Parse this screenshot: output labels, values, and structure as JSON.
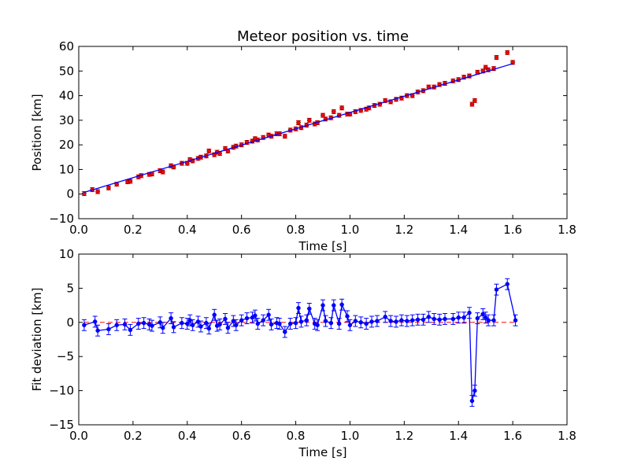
{
  "chart_data": [
    {
      "type": "scatter",
      "title": "Meteor position vs. time",
      "xlabel": "Time [s]",
      "ylabel": "Position [km]",
      "xlim": [
        0.0,
        1.8
      ],
      "ylim": [
        -10,
        60
      ],
      "xticks": [
        "0.0",
        "0.2",
        "0.4",
        "0.6",
        "0.8",
        "1.0",
        "1.2",
        "1.4",
        "1.6",
        "1.8"
      ],
      "yticks": [
        "−10",
        "0",
        "10",
        "20",
        "30",
        "40",
        "50",
        "60"
      ],
      "grid": false,
      "series": [
        {
          "kind": "points_with_errorbars",
          "color": "#ff0000",
          "x": [
            0.02,
            0.05,
            0.07,
            0.11,
            0.14,
            0.18,
            0.19,
            0.22,
            0.23,
            0.26,
            0.27,
            0.3,
            0.31,
            0.34,
            0.35,
            0.38,
            0.4,
            0.41,
            0.42,
            0.44,
            0.45,
            0.47,
            0.48,
            0.5,
            0.51,
            0.52,
            0.54,
            0.55,
            0.57,
            0.58,
            0.6,
            0.62,
            0.64,
            0.65,
            0.66,
            0.68,
            0.7,
            0.71,
            0.73,
            0.74,
            0.76,
            0.78,
            0.8,
            0.81,
            0.82,
            0.84,
            0.85,
            0.87,
            0.88,
            0.9,
            0.91,
            0.93,
            0.94,
            0.96,
            0.97,
            0.99,
            1.0,
            1.02,
            1.04,
            1.06,
            1.07,
            1.09,
            1.11,
            1.13,
            1.15,
            1.17,
            1.19,
            1.21,
            1.23,
            1.25,
            1.27,
            1.29,
            1.31,
            1.33,
            1.35,
            1.38,
            1.4,
            1.42,
            1.44,
            1.45,
            1.46,
            1.47,
            1.49,
            1.5,
            1.51,
            1.53,
            1.54,
            1.58,
            1.6
          ],
          "y": [
            0.2,
            1.8,
            1.0,
            2.5,
            4.0,
            5.0,
            5.2,
            7.0,
            7.5,
            8.0,
            8.2,
            9.5,
            9.0,
            11.5,
            11.0,
            12.5,
            12.5,
            14.0,
            13.5,
            14.5,
            15.0,
            15.5,
            17.5,
            16.0,
            17.0,
            16.5,
            18.5,
            17.5,
            19.0,
            19.5,
            20.0,
            21.0,
            21.5,
            22.5,
            22.0,
            23.0,
            24.0,
            23.5,
            24.5,
            24.5,
            23.5,
            26.0,
            26.5,
            29.0,
            27.0,
            28.0,
            30.0,
            28.5,
            29.0,
            32.0,
            30.5,
            31.0,
            33.5,
            32.0,
            35.0,
            32.5,
            32.5,
            33.5,
            34.0,
            34.5,
            35.0,
            36.0,
            36.5,
            38.0,
            37.5,
            38.5,
            39.0,
            40.0,
            40.0,
            41.5,
            42.0,
            43.5,
            43.5,
            44.5,
            45.0,
            46.0,
            46.5,
            47.5,
            48.0,
            36.5,
            38.0,
            49.5,
            50.0,
            51.5,
            50.5,
            51.0,
            55.5,
            57.5,
            53.5
          ],
          "yerr": 0.8
        },
        {
          "kind": "fit_line",
          "color": "#0000ff",
          "x": [
            0.02,
            1.6
          ],
          "y": [
            0.7,
            53.0
          ]
        }
      ]
    },
    {
      "type": "line",
      "xlabel": "Time [s]",
      "ylabel": "Fit deviation [km]",
      "xlim": [
        0.0,
        1.8
      ],
      "ylim": [
        -15,
        10
      ],
      "xticks": [
        "0.0",
        "0.2",
        "0.4",
        "0.6",
        "0.8",
        "1.0",
        "1.2",
        "1.4",
        "1.6",
        "1.8"
      ],
      "yticks": [
        "−15",
        "−10",
        "−5",
        "0",
        "5",
        "10"
      ],
      "grid": false,
      "reference_line": {
        "y": 0,
        "color": "#ff0000",
        "style": "dashed"
      },
      "series": [
        {
          "kind": "line_with_errorbars",
          "color": "#0000ff",
          "x": [
            0.02,
            0.06,
            0.07,
            0.11,
            0.14,
            0.17,
            0.19,
            0.22,
            0.24,
            0.26,
            0.27,
            0.3,
            0.31,
            0.34,
            0.35,
            0.38,
            0.4,
            0.41,
            0.42,
            0.44,
            0.45,
            0.47,
            0.48,
            0.5,
            0.51,
            0.52,
            0.54,
            0.55,
            0.57,
            0.58,
            0.6,
            0.62,
            0.64,
            0.65,
            0.66,
            0.68,
            0.7,
            0.71,
            0.73,
            0.74,
            0.76,
            0.78,
            0.8,
            0.81,
            0.82,
            0.84,
            0.85,
            0.87,
            0.88,
            0.9,
            0.91,
            0.93,
            0.94,
            0.96,
            0.97,
            0.99,
            1.0,
            1.02,
            1.04,
            1.06,
            1.08,
            1.1,
            1.13,
            1.15,
            1.17,
            1.19,
            1.21,
            1.23,
            1.25,
            1.27,
            1.29,
            1.31,
            1.33,
            1.35,
            1.38,
            1.4,
            1.42,
            1.44,
            1.45,
            1.46,
            1.47,
            1.49,
            1.5,
            1.51,
            1.53,
            1.54,
            1.58,
            1.61
          ],
          "y": [
            -0.4,
            0.1,
            -1.2,
            -1.0,
            -0.4,
            -0.3,
            -1.1,
            -0.2,
            -0.1,
            -0.3,
            -0.5,
            0.0,
            -0.8,
            0.6,
            -0.7,
            -0.1,
            -0.2,
            0.3,
            -0.4,
            0.1,
            -0.6,
            -0.1,
            -0.9,
            1.1,
            -0.5,
            -0.3,
            0.5,
            -0.8,
            0.2,
            -0.4,
            0.3,
            0.6,
            0.7,
            1.0,
            -0.2,
            0.3,
            1.1,
            -0.3,
            -0.1,
            -0.2,
            -1.4,
            -0.2,
            -0.1,
            2.1,
            0.1,
            0.3,
            2.0,
            -0.2,
            -0.4,
            2.5,
            0.2,
            -0.1,
            2.5,
            -0.2,
            2.6,
            0.9,
            -0.4,
            0.2,
            0.0,
            -0.2,
            0.1,
            0.2,
            0.8,
            0.2,
            0.1,
            0.3,
            0.2,
            0.3,
            0.4,
            0.4,
            0.8,
            0.5,
            0.4,
            0.5,
            0.5,
            0.7,
            0.7,
            1.4,
            -11.5,
            -10.0,
            0.6,
            1.2,
            0.7,
            0.3,
            0.3,
            4.8,
            5.6,
            0.3
          ],
          "yerr": 0.8
        }
      ]
    }
  ]
}
